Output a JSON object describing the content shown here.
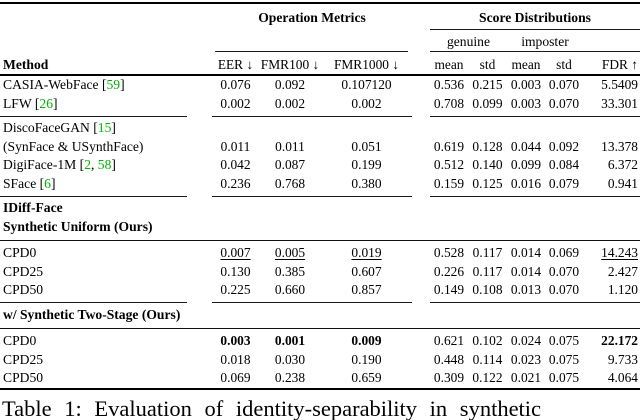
{
  "colors": {
    "citation_green": "#00b300",
    "text": "#000000",
    "background": "#ffffff"
  },
  "table": {
    "group_headers": {
      "operation_metrics": "Operation Metrics",
      "score_distributions": "Score Distributions"
    },
    "subgroup_headers": {
      "genuine": "genuine",
      "imposter": "imposter"
    },
    "column_headers": {
      "method": "Method",
      "eer": "EER ↓",
      "fmr100": "FMR100 ↓",
      "fmr1000": "FMR1000 ↓",
      "gen_mean": "mean",
      "gen_std": "std",
      "imp_mean": "mean",
      "imp_std": "std",
      "fdr": "FDR ↑"
    },
    "rows": [
      {
        "kind": "data",
        "method": {
          "text": "CASIA-WebFace",
          "cites": [
            "59"
          ]
        },
        "values": [
          "0.076",
          "0.092",
          "0.107120",
          "0.536",
          "0.215",
          "0.003",
          "0.070",
          "5.5409"
        ]
      },
      {
        "kind": "data",
        "method": {
          "text": "LFW",
          "cites": [
            "26"
          ]
        },
        "values": [
          "0.002",
          "0.002",
          "0.002",
          "0.708",
          "0.099",
          "0.003",
          "0.070",
          "33.301"
        ]
      },
      {
        "kind": "rule_segmented"
      },
      {
        "kind": "data",
        "method": {
          "text": "DiscoFaceGAN",
          "cites": [
            "15"
          ]
        },
        "values": [
          "",
          "",
          "",
          "",
          "",
          "",
          "",
          ""
        ]
      },
      {
        "kind": "data",
        "method": {
          "text": "(SynFace & USynthFace)"
        },
        "values": [
          "0.011",
          "0.011",
          "0.051",
          "0.619",
          "0.128",
          "0.044",
          "0.092",
          "13.378"
        ]
      },
      {
        "kind": "data",
        "method": {
          "text": "DigiFace-1M",
          "cites": [
            "2",
            "58"
          ]
        },
        "values": [
          "0.042",
          "0.087",
          "0.199",
          "0.512",
          "0.140",
          "0.099",
          "0.084",
          "6.372"
        ]
      },
      {
        "kind": "data",
        "method": {
          "text": "SFace",
          "cites": [
            "6"
          ]
        },
        "values": [
          "0.236",
          "0.768",
          "0.380",
          "0.159",
          "0.125",
          "0.016",
          "0.079",
          "0.941"
        ]
      },
      {
        "kind": "rule_segmented"
      },
      {
        "kind": "data",
        "method": {
          "text": "IDiff-Face",
          "bold": true
        },
        "values": [
          "",
          "",
          "",
          "",
          "",
          "",
          "",
          ""
        ]
      },
      {
        "kind": "data",
        "method": {
          "text": "Synthetic Uniform (Ours)",
          "bold": true
        },
        "values": [
          "",
          "",
          "",
          "",
          "",
          "",
          "",
          ""
        ]
      },
      {
        "kind": "rule_full"
      },
      {
        "kind": "data",
        "method": {
          "text": "CPD0"
        },
        "values": [
          "0.007",
          "0.005",
          "0.019",
          "0.528",
          "0.117",
          "0.014",
          "0.069",
          "14.243"
        ],
        "underline": [
          0,
          1,
          2,
          7
        ]
      },
      {
        "kind": "data",
        "method": {
          "text": "CPD25"
        },
        "values": [
          "0.130",
          "0.385",
          "0.607",
          "0.226",
          "0.117",
          "0.014",
          "0.070",
          "2.427"
        ]
      },
      {
        "kind": "data",
        "method": {
          "text": "CPD50"
        },
        "values": [
          "0.225",
          "0.660",
          "0.857",
          "0.149",
          "0.108",
          "0.013",
          "0.070",
          "1.120"
        ]
      },
      {
        "kind": "rule_segmented"
      },
      {
        "kind": "data",
        "method": {
          "text": "w/ Synthetic Two-Stage (Ours)",
          "bold": true
        },
        "values": [
          "",
          "",
          "",
          "",
          "",
          "",
          "",
          ""
        ]
      },
      {
        "kind": "rule_full"
      },
      {
        "kind": "data",
        "method": {
          "text": "CPD0"
        },
        "values": [
          "0.003",
          "0.001",
          "0.009",
          "0.621",
          "0.102",
          "0.024",
          "0.075",
          "22.172"
        ],
        "bold_cells": [
          0,
          1,
          2,
          7
        ]
      },
      {
        "kind": "data",
        "method": {
          "text": "CPD25"
        },
        "values": [
          "0.018",
          "0.030",
          "0.190",
          "0.448",
          "0.114",
          "0.023",
          "0.075",
          "9.733"
        ]
      },
      {
        "kind": "data",
        "method": {
          "text": "CPD50"
        },
        "values": [
          "0.069",
          "0.238",
          "0.659",
          "0.309",
          "0.122",
          "0.021",
          "0.075",
          "4.064"
        ]
      }
    ]
  },
  "caption": "Table 1: Evaluation of identity-separability in synthetic"
}
